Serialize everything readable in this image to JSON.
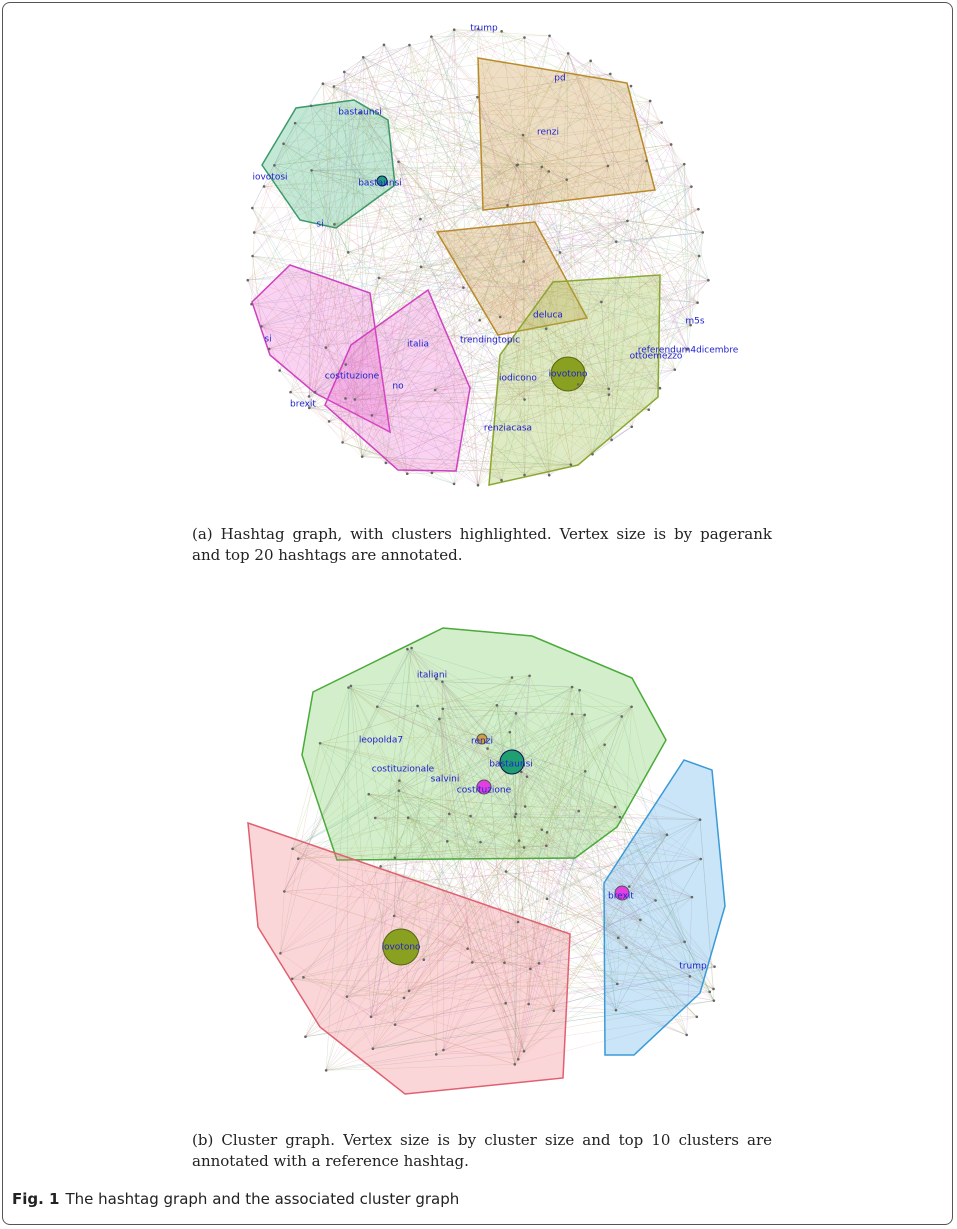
{
  "figure": {
    "panels": [
      {
        "node_labels": [
          "trump",
          "pd",
          "renzi",
          "bastaunsi",
          "iovotosi",
          "bastaunsi",
          "si",
          "deluca",
          "m5s",
          "referendum4dicembre",
          "ottoemezzo",
          "trendingtopic",
          "italia",
          "si",
          "iovotono",
          "iodicono",
          "costituzione",
          "no",
          "brexit",
          "renziacasa"
        ],
        "caption": "(a) Hashtag graph, with clusters highlighted. Vertex size is by pagerank and top 20 hashtags are annotated."
      },
      {
        "node_labels": [
          "italiani",
          "renzi",
          "leopolda7",
          "bastaunsi",
          "costituzionale",
          "salvini",
          "costituzione",
          "brexit",
          "iovotono",
          "trump"
        ],
        "caption": "(b) Cluster graph. Vertex size is by cluster size and top 10 clusters are annotated with a reference hashtag."
      }
    ],
    "label": "Fig. 1",
    "caption": "The hashtag graph and the associated cluster graph"
  }
}
